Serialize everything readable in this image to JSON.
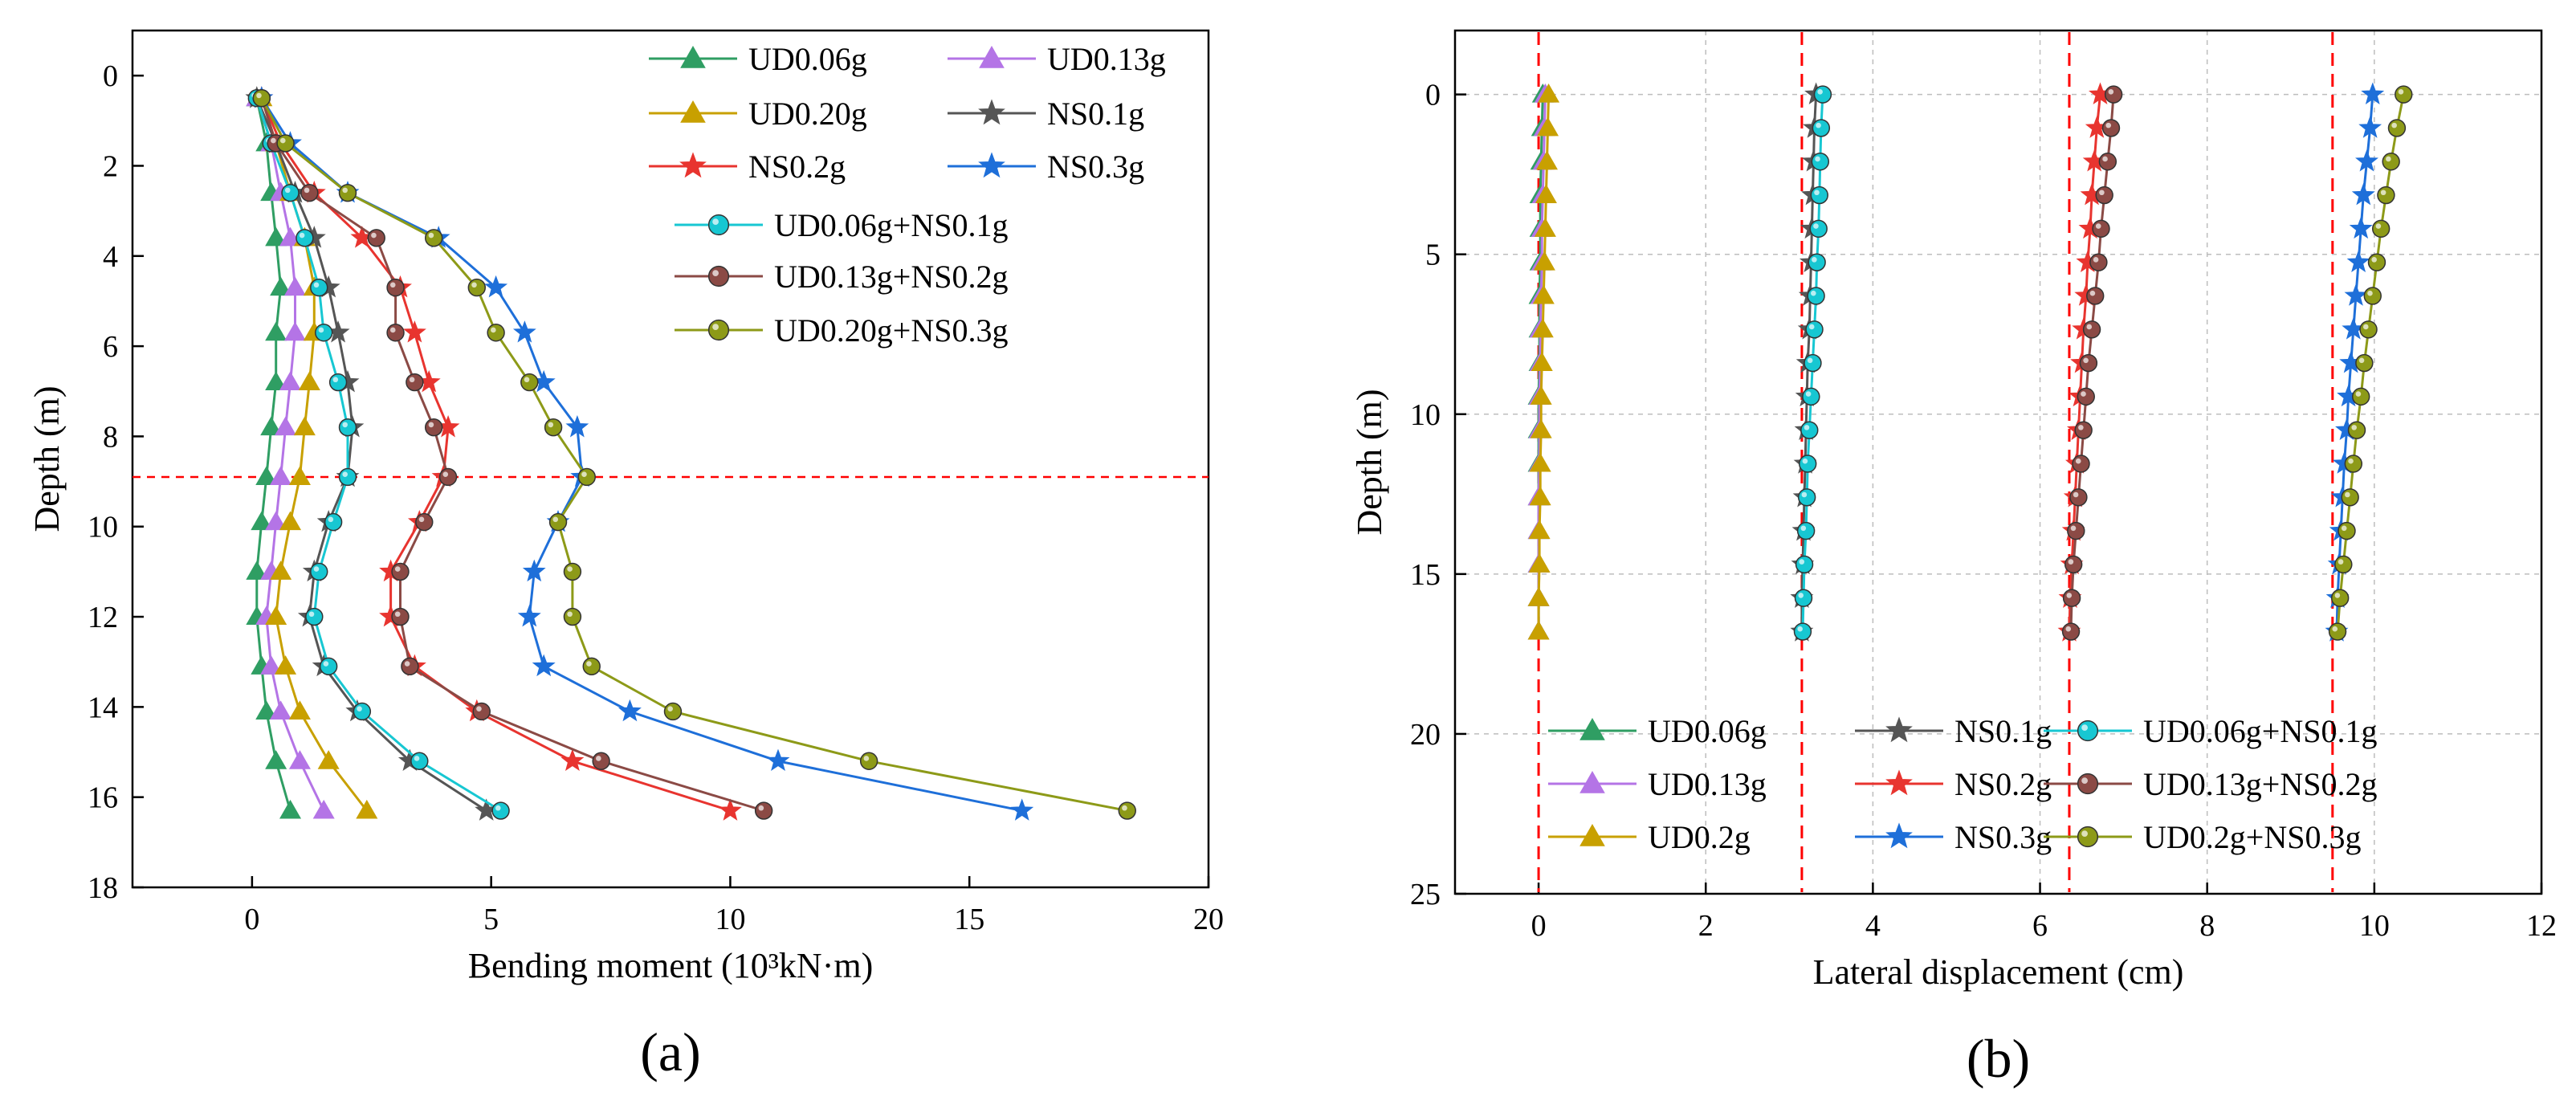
{
  "chart_data": [
    {
      "type": "line",
      "panel_label": "(a)",
      "xlabel": "Bending moment (10³kN·m)",
      "ylabel": "Depth (m)",
      "xlim": [
        -2.5,
        20
      ],
      "ylim": [
        18,
        -1
      ],
      "y_inverted": true,
      "xticks": [
        0,
        5,
        10,
        15,
        20
      ],
      "yticks": [
        0,
        2,
        4,
        6,
        8,
        10,
        12,
        14,
        16,
        18
      ],
      "grid": false,
      "legend_position": "top-right",
      "reference_line": {
        "orientation": "horizontal",
        "depth": 8.9,
        "color": "#ff0000",
        "style": "dashed"
      },
      "series": [
        {
          "name": "UD0.06g",
          "color": "#2f9e63",
          "marker": "triangle",
          "x": [
            0.1,
            0.3,
            0.4,
            0.5,
            0.6,
            0.5,
            0.5,
            0.4,
            0.3,
            0.2,
            0.1,
            0.1,
            0.2,
            0.3,
            0.5,
            0.8
          ],
          "y": [
            0.5,
            1.5,
            2.6,
            3.6,
            4.7,
            5.7,
            6.8,
            7.8,
            8.9,
            9.9,
            11.0,
            12.0,
            13.1,
            14.1,
            15.2,
            16.3
          ]
        },
        {
          "name": "UD0.13g",
          "color": "#b474e6",
          "marker": "triangle",
          "x": [
            0.1,
            0.4,
            0.6,
            0.8,
            0.9,
            0.9,
            0.8,
            0.7,
            0.6,
            0.5,
            0.4,
            0.3,
            0.4,
            0.6,
            1.0,
            1.5
          ],
          "y": [
            0.5,
            1.5,
            2.6,
            3.6,
            4.7,
            5.7,
            6.8,
            7.8,
            8.9,
            9.9,
            11.0,
            12.0,
            13.1,
            14.1,
            15.2,
            16.3
          ]
        },
        {
          "name": "UD0.20g",
          "color": "#c8a000",
          "marker": "triangle",
          "x": [
            0.2,
            0.5,
            0.8,
            1.1,
            1.3,
            1.3,
            1.2,
            1.1,
            1.0,
            0.8,
            0.6,
            0.5,
            0.7,
            1.0,
            1.6,
            2.4
          ],
          "y": [
            0.5,
            1.5,
            2.6,
            3.6,
            4.7,
            5.7,
            6.8,
            7.8,
            8.9,
            9.9,
            11.0,
            12.0,
            13.1,
            14.1,
            15.2,
            16.3
          ]
        },
        {
          "name": "NS0.1g",
          "color": "#555555",
          "marker": "star",
          "x": [
            0.1,
            0.5,
            0.9,
            1.3,
            1.6,
            1.8,
            2.0,
            2.1,
            2.0,
            1.6,
            1.3,
            1.2,
            1.5,
            2.2,
            3.3,
            4.9
          ],
          "y": [
            0.5,
            1.5,
            2.6,
            3.6,
            4.7,
            5.7,
            6.8,
            7.8,
            8.9,
            9.9,
            11.0,
            12.0,
            13.1,
            14.1,
            15.2,
            16.3
          ]
        },
        {
          "name": "NS0.2g",
          "color": "#e8342f",
          "marker": "star",
          "x": [
            0.2,
            0.6,
            1.3,
            2.3,
            3.1,
            3.4,
            3.7,
            4.1,
            4.0,
            3.5,
            2.9,
            2.9,
            3.4,
            4.7,
            6.7,
            10.0
          ],
          "y": [
            0.5,
            1.5,
            2.6,
            3.6,
            4.7,
            5.7,
            6.8,
            7.8,
            8.9,
            9.9,
            11.0,
            12.0,
            13.1,
            14.1,
            15.2,
            16.3
          ]
        },
        {
          "name": "NS0.3g",
          "color": "#1e6fd9",
          "marker": "star",
          "x": [
            0.2,
            0.8,
            2.0,
            3.9,
            5.1,
            5.7,
            6.1,
            6.8,
            6.9,
            6.4,
            5.9,
            5.8,
            6.1,
            7.9,
            11.0,
            16.1
          ],
          "y": [
            0.5,
            1.5,
            2.6,
            3.6,
            4.7,
            5.7,
            6.8,
            7.8,
            8.9,
            9.9,
            11.0,
            12.0,
            13.1,
            14.1,
            15.2,
            16.3
          ]
        },
        {
          "name": "UD0.06g+NS0.1g",
          "color": "#17c7d2",
          "marker": "circle",
          "x": [
            0.1,
            0.4,
            0.8,
            1.1,
            1.4,
            1.5,
            1.8,
            2.0,
            2.0,
            1.7,
            1.4,
            1.3,
            1.6,
            2.3,
            3.5,
            5.2
          ],
          "y": [
            0.5,
            1.5,
            2.6,
            3.6,
            4.7,
            5.7,
            6.8,
            7.8,
            8.9,
            9.9,
            11.0,
            12.0,
            13.1,
            14.1,
            15.2,
            16.3
          ]
        },
        {
          "name": "UD0.13g+NS0.2g",
          "color": "#8b4a45",
          "marker": "circle",
          "x": [
            0.2,
            0.5,
            1.2,
            2.6,
            3.0,
            3.0,
            3.4,
            3.8,
            4.1,
            3.6,
            3.1,
            3.1,
            3.3,
            4.8,
            7.3,
            10.7
          ],
          "y": [
            0.5,
            1.5,
            2.6,
            3.6,
            4.7,
            5.7,
            6.8,
            7.8,
            8.9,
            9.9,
            11.0,
            12.0,
            13.1,
            14.1,
            15.2,
            16.3
          ]
        },
        {
          "name": "UD0.20g+NS0.3g",
          "color": "#8d9a18",
          "marker": "circle",
          "x": [
            0.2,
            0.7,
            2.0,
            3.8,
            4.7,
            5.1,
            5.8,
            6.3,
            7.0,
            6.4,
            6.7,
            6.7,
            7.1,
            8.8,
            12.9,
            18.3
          ],
          "y": [
            0.5,
            1.5,
            2.6,
            3.6,
            4.7,
            5.7,
            6.8,
            7.8,
            8.9,
            9.9,
            11.0,
            12.0,
            13.1,
            14.1,
            15.2,
            16.3
          ]
        }
      ]
    },
    {
      "type": "line",
      "panel_label": "(b)",
      "xlabel": "Lateral displacement (cm)",
      "ylabel": "Depth (m)",
      "xlim": [
        -1,
        12
      ],
      "ylim": [
        25,
        -2
      ],
      "y_inverted": true,
      "xticks": [
        0,
        2,
        4,
        6,
        8,
        10,
        12
      ],
      "yticks": [
        0,
        5,
        10,
        15,
        20,
        25
      ],
      "grid": true,
      "legend_position": "bottom",
      "reference_lines": [
        {
          "orientation": "vertical",
          "x": 0.0,
          "color": "#ff0000",
          "style": "dashed"
        },
        {
          "orientation": "vertical",
          "x": 3.15,
          "color": "#ff0000",
          "style": "dashed"
        },
        {
          "orientation": "vertical",
          "x": 6.35,
          "color": "#ff0000",
          "style": "dashed"
        },
        {
          "orientation": "vertical",
          "x": 9.5,
          "color": "#ff0000",
          "style": "dashed"
        }
      ],
      "series": [
        {
          "name": "UD0.06g",
          "color": "#2f9e63",
          "marker": "triangle",
          "x": [
            0.05,
            0.04,
            0.03,
            0.02,
            0.02,
            0.02,
            0.01,
            0.01,
            0.01,
            0.0,
            0.0,
            0.0,
            0.0,
            0.0,
            0.0,
            0.0,
            0.0
          ],
          "y": [
            0,
            1.05,
            2.1,
            3.15,
            4.2,
            5.25,
            6.3,
            7.35,
            8.4,
            9.45,
            10.5,
            11.55,
            12.6,
            13.65,
            14.7,
            15.75,
            16.8
          ]
        },
        {
          "name": "UD0.13g",
          "color": "#b474e6",
          "marker": "triangle",
          "x": [
            0.08,
            0.07,
            0.06,
            0.05,
            0.04,
            0.04,
            0.03,
            0.02,
            0.02,
            0.01,
            0.01,
            0.01,
            0.0,
            0.0,
            0.0,
            0.0,
            0.0
          ],
          "y": [
            0,
            1.05,
            2.1,
            3.15,
            4.2,
            5.25,
            6.3,
            7.35,
            8.4,
            9.45,
            10.5,
            11.55,
            12.6,
            13.65,
            14.7,
            15.75,
            16.8
          ]
        },
        {
          "name": "UD0.2g",
          "color": "#c8a000",
          "marker": "triangle",
          "x": [
            0.12,
            0.11,
            0.1,
            0.09,
            0.08,
            0.07,
            0.06,
            0.05,
            0.04,
            0.03,
            0.03,
            0.02,
            0.02,
            0.01,
            0.01,
            0.0,
            0.0
          ],
          "y": [
            0,
            1.05,
            2.1,
            3.15,
            4.2,
            5.25,
            6.3,
            7.35,
            8.4,
            9.45,
            10.5,
            11.55,
            12.6,
            13.65,
            14.7,
            15.75,
            16.8
          ]
        },
        {
          "name": "NS0.1g",
          "color": "#555555",
          "marker": "star",
          "x": [
            3.32,
            3.3,
            3.29,
            3.28,
            3.27,
            3.26,
            3.25,
            3.24,
            3.22,
            3.21,
            3.2,
            3.19,
            3.18,
            3.17,
            3.16,
            3.15,
            3.15
          ],
          "y": [
            0,
            1.05,
            2.1,
            3.15,
            4.2,
            5.25,
            6.3,
            7.35,
            8.4,
            9.45,
            10.5,
            11.55,
            12.6,
            13.65,
            14.7,
            15.75,
            16.8
          ]
        },
        {
          "name": "NS0.2g",
          "color": "#e8342f",
          "marker": "star",
          "x": [
            6.72,
            6.68,
            6.65,
            6.62,
            6.6,
            6.57,
            6.55,
            6.52,
            6.5,
            6.48,
            6.46,
            6.44,
            6.42,
            6.4,
            6.38,
            6.36,
            6.35
          ],
          "y": [
            0,
            1.05,
            2.1,
            3.15,
            4.2,
            5.25,
            6.3,
            7.35,
            8.4,
            9.45,
            10.5,
            11.55,
            12.6,
            13.65,
            14.7,
            15.75,
            16.8
          ]
        },
        {
          "name": "NS0.3g",
          "color": "#1e6fd9",
          "marker": "star",
          "x": [
            9.98,
            9.95,
            9.91,
            9.87,
            9.84,
            9.81,
            9.78,
            9.75,
            9.72,
            9.69,
            9.67,
            9.64,
            9.62,
            9.6,
            9.58,
            9.56,
            9.55
          ],
          "y": [
            0,
            1.05,
            2.1,
            3.15,
            4.2,
            5.25,
            6.3,
            7.35,
            8.4,
            9.45,
            10.5,
            11.55,
            12.6,
            13.65,
            14.7,
            15.75,
            16.8
          ]
        },
        {
          "name": "UD0.06g+NS0.1g",
          "color": "#17c7d2",
          "marker": "circle",
          "x": [
            3.4,
            3.38,
            3.37,
            3.36,
            3.35,
            3.33,
            3.32,
            3.3,
            3.28,
            3.26,
            3.24,
            3.22,
            3.21,
            3.2,
            3.18,
            3.17,
            3.16
          ],
          "y": [
            0,
            1.05,
            2.1,
            3.15,
            4.2,
            5.25,
            6.3,
            7.35,
            8.4,
            9.45,
            10.5,
            11.55,
            12.6,
            13.65,
            14.7,
            15.75,
            16.8
          ]
        },
        {
          "name": "UD0.13g+NS0.2g",
          "color": "#8b4a45",
          "marker": "circle",
          "x": [
            6.88,
            6.85,
            6.81,
            6.77,
            6.73,
            6.7,
            6.66,
            6.62,
            6.58,
            6.55,
            6.52,
            6.49,
            6.46,
            6.43,
            6.4,
            6.38,
            6.37
          ],
          "y": [
            0,
            1.05,
            2.1,
            3.15,
            4.2,
            5.25,
            6.3,
            7.35,
            8.4,
            9.45,
            10.5,
            11.55,
            12.6,
            13.65,
            14.7,
            15.75,
            16.8
          ]
        },
        {
          "name": "UD0.2g+NS0.3g",
          "color": "#8d9a18",
          "marker": "circle",
          "x": [
            10.35,
            10.27,
            10.2,
            10.14,
            10.08,
            10.03,
            9.98,
            9.93,
            9.88,
            9.84,
            9.79,
            9.75,
            9.71,
            9.67,
            9.63,
            9.59,
            9.56
          ],
          "y": [
            0,
            1.05,
            2.1,
            3.15,
            4.2,
            5.25,
            6.3,
            7.35,
            8.4,
            9.45,
            10.5,
            11.55,
            12.6,
            13.65,
            14.7,
            15.75,
            16.8
          ]
        }
      ]
    }
  ]
}
